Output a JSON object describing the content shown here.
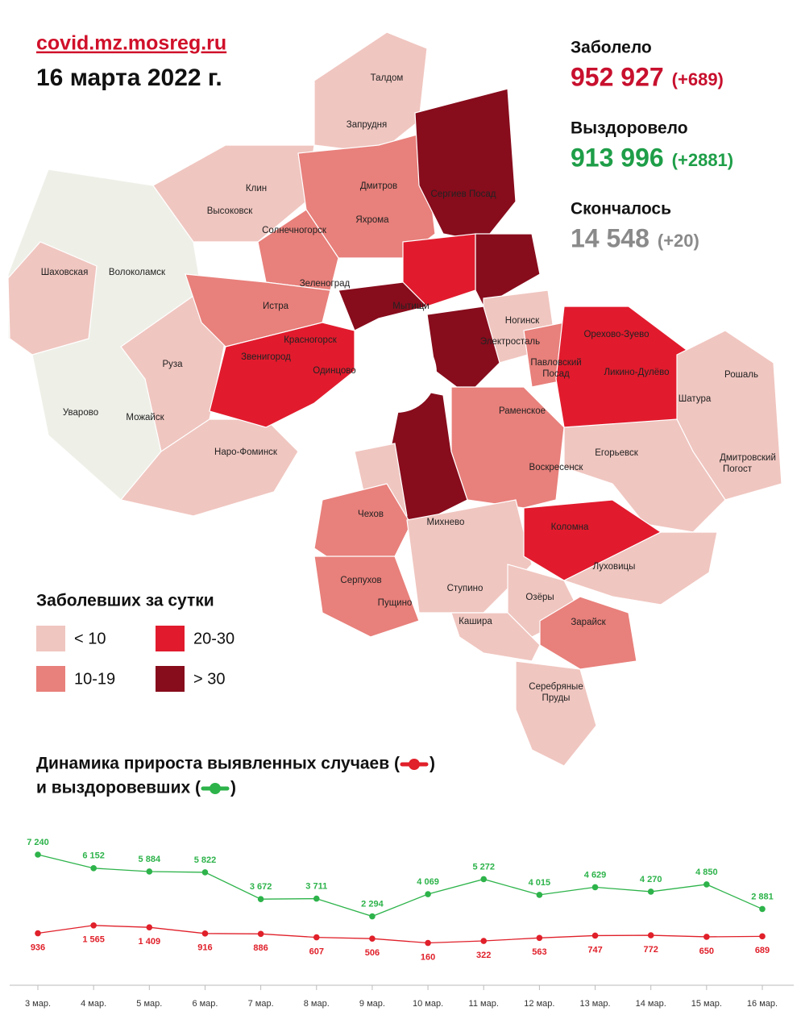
{
  "header": {
    "site": "covid.mz.mosreg.ru",
    "date": "16 марта 2022 г."
  },
  "stats": [
    {
      "label": "Заболело",
      "value": "952 927",
      "delta": "(+689)",
      "color": "#c8102e"
    },
    {
      "label": "Выздоровело",
      "value": "913 996",
      "delta": "(+2881)",
      "color": "#1e9e48"
    },
    {
      "label": "Скончалось",
      "value": "14 548",
      "delta": "(+20)",
      "color": "#8a8a8a"
    }
  ],
  "map": {
    "labels": [
      "Талдом",
      "Запрудня",
      "Клин",
      "Дмитров",
      "Высоковск",
      "Сергиев Посад",
      "Яхрома",
      "Солнечногорск",
      "Шаховская",
      "Волоколамск",
      "Зеленоград",
      "Мытищи",
      "Истра",
      "Ногинск",
      "Красногорск",
      "Орехово-Зуево",
      "Электросталь",
      "Павловский",
      "Посад",
      "Звенигород",
      "Одинцово",
      "Ликино-Дулёво",
      "Рошаль",
      "Руза",
      "Шатура",
      "Раменское",
      "Уварово",
      "Можайск",
      "Егорьевск",
      "Наро-Фоминск",
      "Дмитровский",
      "Погост",
      "Воскресенск",
      "Чехов",
      "Михнево",
      "Коломна",
      "Луховицы",
      "Серпухов",
      "Ступино",
      "Озёры",
      "Пущино",
      "Кашира",
      "Зарайск",
      "Серебряные",
      "Пруды"
    ]
  },
  "legend": {
    "title": "Заболевших за сутки",
    "items": [
      {
        "label": "< 10",
        "color": "#f0c6c0"
      },
      {
        "label": "20-30",
        "color": "#e11b2d"
      },
      {
        "label": "10-19",
        "color": "#e8807b"
      },
      {
        "label": "> 30",
        "color": "#870c1c"
      }
    ]
  },
  "chart_data": {
    "type": "line",
    "title": [
      "Динамика прироста выявленных случаев (",
      ")",
      "и выздоровевших (",
      ")"
    ],
    "categories": [
      "3 мар.",
      "4 мар.",
      "5 мар.",
      "6 мар.",
      "7 мар.",
      "8 мар.",
      "9 мар.",
      "10 мар.",
      "11 мар.",
      "12 мар.",
      "13 мар.",
      "14 мар.",
      "15 мар.",
      "16 мар."
    ],
    "series": [
      {
        "color": "#2db34a",
        "values": [
          7240,
          6152,
          5884,
          5822,
          3672,
          3711,
          2294,
          4069,
          5272,
          4015,
          4629,
          4270,
          4850,
          2881
        ],
        "value_labels": [
          "7 240",
          "6 152",
          "5 884",
          "5 822",
          "3 672",
          "3 711",
          "2 294",
          "4 069",
          "5 272",
          "4 015",
          "4 629",
          "4 270",
          "4 850",
          "2 881"
        ]
      },
      {
        "color": "#e0202a",
        "values": [
          936,
          1565,
          1409,
          916,
          886,
          607,
          506,
          160,
          322,
          563,
          747,
          772,
          650,
          689
        ],
        "value_labels": [
          "936",
          "1 565",
          "1 409",
          "916",
          "886",
          "607",
          "506",
          "160",
          "322",
          "563",
          "747",
          "772",
          "650",
          "689"
        ]
      }
    ]
  }
}
